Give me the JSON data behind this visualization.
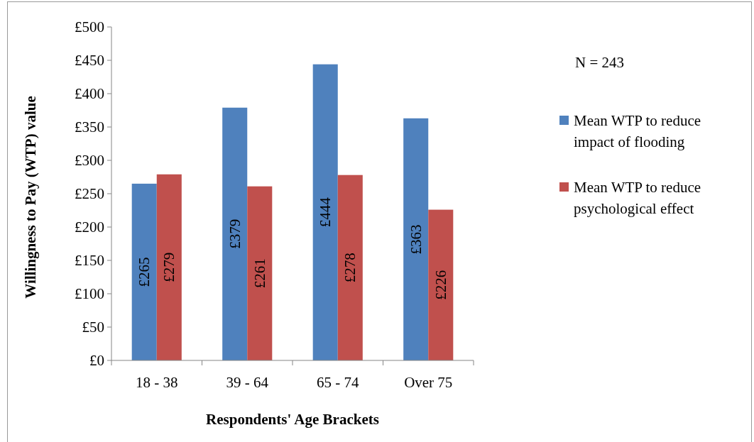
{
  "chart_data": {
    "type": "bar",
    "xlabel": "Respondents' Age Brackets",
    "ylabel": "Willingness to Pay (WTP) value",
    "categories": [
      "18 - 38",
      "39 - 64",
      "65 - 74",
      "Over 75"
    ],
    "series": [
      {
        "name": "Mean WTP to reduce impact of flooding",
        "color": "#4f81bd",
        "values": [
          265,
          379,
          444,
          363
        ],
        "value_labels": [
          "£265",
          "£379",
          "£444",
          "£363"
        ]
      },
      {
        "name": "Mean WTP to reduce psychological effect",
        "color": "#c0504d",
        "values": [
          279,
          261,
          278,
          226
        ],
        "value_labels": [
          "£279",
          "£261",
          "£278",
          "£226"
        ]
      }
    ],
    "ylim": [
      0,
      500
    ],
    "yticks": [
      {
        "value": 0,
        "label": "£0"
      },
      {
        "value": 50,
        "label": "£50"
      },
      {
        "value": 100,
        "label": "£100"
      },
      {
        "value": 150,
        "label": "£150"
      },
      {
        "value": 200,
        "label": "£200"
      },
      {
        "value": 250,
        "label": "£250"
      },
      {
        "value": 300,
        "label": "£300"
      },
      {
        "value": 350,
        "label": "£350"
      },
      {
        "value": 400,
        "label": "£400"
      },
      {
        "value": 450,
        "label": "£450"
      },
      {
        "value": 500,
        "label": "£500"
      }
    ],
    "legend": "right",
    "grid": false,
    "annotations": [
      "N = 243"
    ]
  }
}
